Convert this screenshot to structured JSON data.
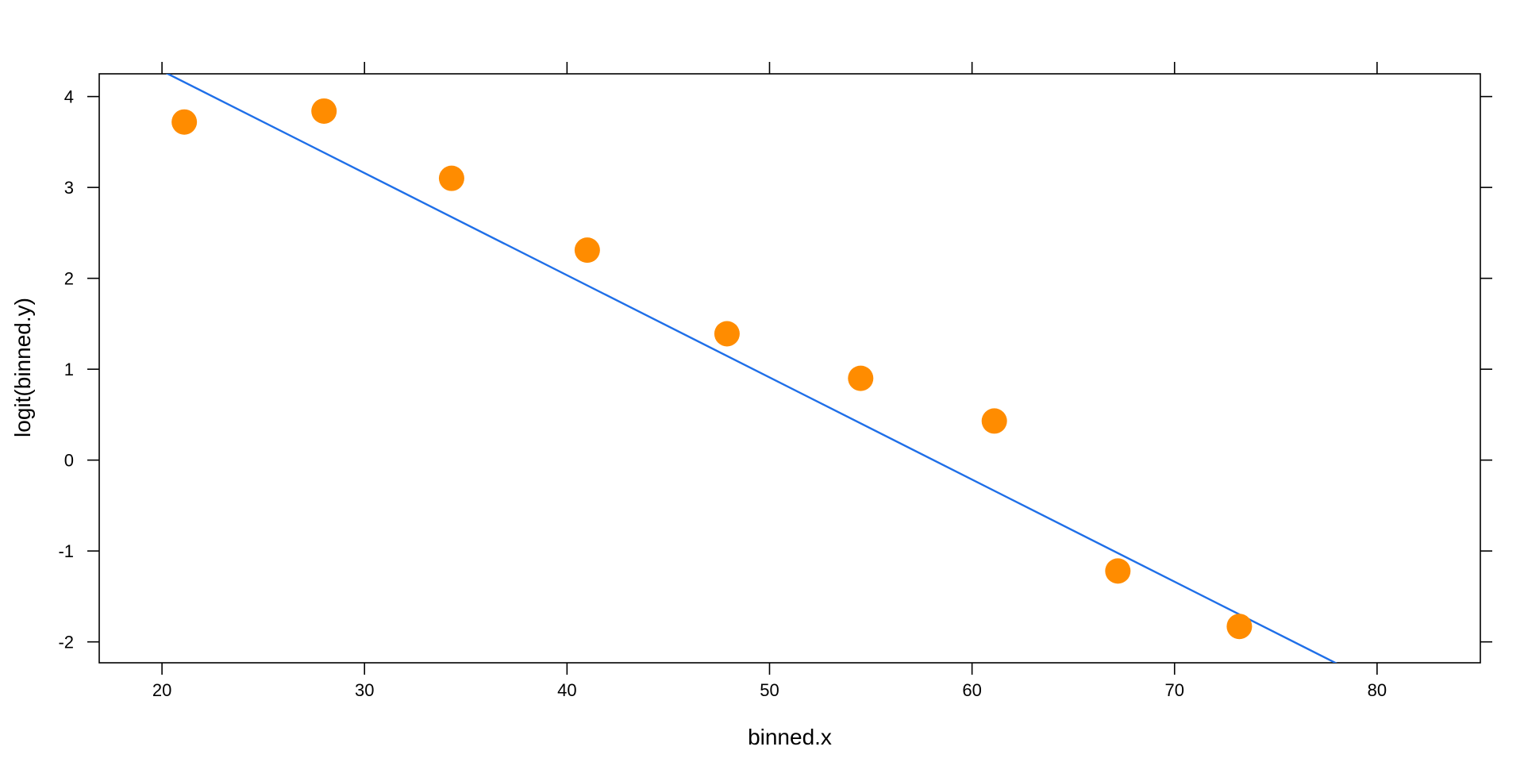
{
  "chart_data": {
    "type": "scatter",
    "title": "",
    "xlabel": "binned.x",
    "ylabel": "logit(binned.y)",
    "xlim": [
      16.9,
      85.1
    ],
    "ylim": [
      -2.23,
      4.25
    ],
    "x_ticks": [
      20,
      30,
      40,
      50,
      60,
      70,
      80
    ],
    "y_ticks": [
      -2,
      -1,
      0,
      1,
      2,
      3,
      4
    ],
    "x_tick_labels": [
      "20",
      "30",
      "40",
      "50",
      "60",
      "70",
      "80"
    ],
    "y_tick_labels": [
      "-2",
      "-1",
      "0",
      "1",
      "2",
      "3",
      "4"
    ],
    "grid": false,
    "points": {
      "x": [
        21.1,
        28.0,
        34.3,
        41.0,
        47.9,
        54.5,
        61.1,
        67.2,
        73.2
      ],
      "y": [
        3.72,
        3.84,
        3.1,
        2.31,
        1.39,
        0.9,
        0.43,
        -1.22,
        -1.83
      ]
    },
    "fit_line": {
      "intercept": 6.53,
      "slope": -0.1124
    },
    "colors": {
      "points": "#FF8C00",
      "line": "#1F6FE8",
      "axis": "#000000"
    }
  }
}
